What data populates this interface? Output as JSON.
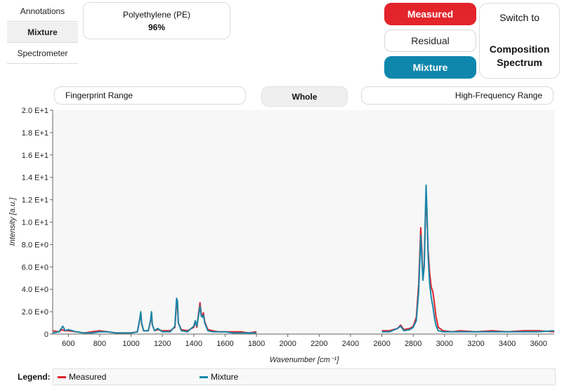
{
  "sidebar": {
    "items": [
      {
        "label": "Annotations",
        "active": false
      },
      {
        "label": "Mixture",
        "active": true
      },
      {
        "label": "Spectrometer",
        "active": false
      }
    ]
  },
  "component": {
    "name": "Polyethylene (PE)",
    "score": "96%"
  },
  "buttons": {
    "measured": "Measured",
    "residual": "Residual",
    "mixture": "Mixture",
    "switch_to": "Switch to",
    "switch_target": "Composition Spectrum"
  },
  "range_tabs": {
    "fingerprint": "Fingerprint Range",
    "whole": "Whole",
    "high": "High-Frequency Range"
  },
  "legend": {
    "title": "Legend:",
    "items": [
      {
        "label": "Measured",
        "color": "#d9232d"
      },
      {
        "label": "Mixture",
        "color": "#1a87a8"
      }
    ]
  },
  "colors": {
    "measured": "#e3242b",
    "mixture": "#0f87ad",
    "measured_line": "#d9232d",
    "mixture_line": "#1a87a8"
  },
  "chart_data": {
    "type": "line",
    "xlabel": "Wavenumber [cm⁻¹]",
    "ylabel": "Intensity [a.u.]",
    "xlim": [
      500,
      3700
    ],
    "ylim": [
      0,
      20
    ],
    "grid": false,
    "xticks": [
      "600",
      "800",
      "1000",
      "1200",
      "1400",
      "1600",
      "1800",
      "2000",
      "2200",
      "2400",
      "2600",
      "2800",
      "3000",
      "3200",
      "3400",
      "3600"
    ],
    "xtick_values": [
      600,
      800,
      1000,
      1200,
      1400,
      1600,
      1800,
      2000,
      2200,
      2400,
      2600,
      2800,
      3000,
      3200,
      3400,
      3600
    ],
    "yticks": [
      "0",
      "2.0 E+0",
      "4.0 E+0",
      "6.0 E+0",
      "8.0 E+0",
      "1.0 E+1",
      "1.2 E+1",
      "1.4 E+1",
      "1.6 E+1",
      "1.8 E+1",
      "2.0 E+1"
    ],
    "ytick_values": [
      0,
      2,
      4,
      6,
      8,
      10,
      12,
      14,
      16,
      18,
      20
    ],
    "series": [
      {
        "name": "Measured",
        "segments": [
          [
            [
              500,
              0.3
            ],
            [
              540,
              0.2
            ],
            [
              560,
              0.4
            ],
            [
              575,
              0.3
            ],
            [
              600,
              0.3
            ],
            [
              650,
              0.2
            ],
            [
              700,
              0.1
            ],
            [
              750,
              0.2
            ],
            [
              800,
              0.3
            ],
            [
              850,
              0.2
            ],
            [
              900,
              0.1
            ],
            [
              950,
              0.1
            ],
            [
              1000,
              0.1
            ],
            [
              1040,
              0.2
            ],
            [
              1055,
              1.2
            ],
            [
              1062,
              1.9
            ],
            [
              1068,
              0.9
            ],
            [
              1080,
              0.3
            ],
            [
              1110,
              0.3
            ],
            [
              1125,
              1.2
            ],
            [
              1130,
              1.9
            ],
            [
              1136,
              0.8
            ],
            [
              1150,
              0.3
            ],
            [
              1170,
              0.4
            ],
            [
              1200,
              0.3
            ],
            [
              1250,
              0.3
            ],
            [
              1280,
              0.6
            ],
            [
              1290,
              2.8
            ],
            [
              1296,
              2.7
            ],
            [
              1302,
              1.0
            ],
            [
              1320,
              0.4
            ],
            [
              1360,
              0.3
            ],
            [
              1400,
              0.6
            ],
            [
              1410,
              1.1
            ],
            [
              1420,
              0.6
            ],
            [
              1430,
              1.8
            ],
            [
              1440,
              2.8
            ],
            [
              1448,
              1.8
            ],
            [
              1455,
              1.6
            ],
            [
              1462,
              1.9
            ],
            [
              1470,
              1.1
            ],
            [
              1490,
              0.4
            ],
            [
              1520,
              0.3
            ],
            [
              1560,
              0.2
            ],
            [
              1600,
              0.2
            ],
            [
              1650,
              0.2
            ],
            [
              1700,
              0.2
            ],
            [
              1750,
              0.1
            ],
            [
              1800,
              0.2
            ]
          ],
          [
            [
              2600,
              0.3
            ],
            [
              2650,
              0.3
            ],
            [
              2700,
              0.5
            ],
            [
              2720,
              0.8
            ],
            [
              2740,
              0.4
            ],
            [
              2780,
              0.5
            ],
            [
              2800,
              0.7
            ],
            [
              2820,
              1.5
            ],
            [
              2835,
              4.5
            ],
            [
              2848,
              9.5
            ],
            [
              2855,
              7.5
            ],
            [
              2862,
              5.0
            ],
            [
              2870,
              6.0
            ],
            [
              2878,
              10.5
            ],
            [
              2882,
              12.4
            ],
            [
              2888,
              10.5
            ],
            [
              2895,
              7.5
            ],
            [
              2905,
              5.5
            ],
            [
              2915,
              4.2
            ],
            [
              2925,
              3.8
            ],
            [
              2935,
              2.8
            ],
            [
              2945,
              1.6
            ],
            [
              2960,
              0.6
            ],
            [
              2990,
              0.3
            ],
            [
              3050,
              0.2
            ],
            [
              3100,
              0.3
            ],
            [
              3200,
              0.2
            ],
            [
              3300,
              0.3
            ],
            [
              3400,
              0.2
            ],
            [
              3500,
              0.3
            ],
            [
              3600,
              0.3
            ],
            [
              3700,
              0.2
            ]
          ]
        ]
      },
      {
        "name": "Mixture",
        "segments": [
          [
            [
              500,
              0.1
            ],
            [
              540,
              0.2
            ],
            [
              565,
              0.7
            ],
            [
              580,
              0.3
            ],
            [
              600,
              0.4
            ],
            [
              650,
              0.2
            ],
            [
              700,
              0.1
            ],
            [
              750,
              0.1
            ],
            [
              800,
              0.2
            ],
            [
              850,
              0.2
            ],
            [
              900,
              0.1
            ],
            [
              950,
              0.1
            ],
            [
              1000,
              0.1
            ],
            [
              1040,
              0.2
            ],
            [
              1055,
              1.3
            ],
            [
              1062,
              2.0
            ],
            [
              1068,
              1.0
            ],
            [
              1080,
              0.3
            ],
            [
              1110,
              0.3
            ],
            [
              1125,
              1.3
            ],
            [
              1130,
              2.0
            ],
            [
              1136,
              0.8
            ],
            [
              1150,
              0.3
            ],
            [
              1170,
              0.5
            ],
            [
              1200,
              0.2
            ],
            [
              1250,
              0.2
            ],
            [
              1280,
              0.7
            ],
            [
              1290,
              3.2
            ],
            [
              1296,
              3.0
            ],
            [
              1302,
              1.0
            ],
            [
              1320,
              0.3
            ],
            [
              1360,
              0.2
            ],
            [
              1400,
              0.7
            ],
            [
              1410,
              1.2
            ],
            [
              1420,
              0.7
            ],
            [
              1430,
              1.6
            ],
            [
              1440,
              2.5
            ],
            [
              1448,
              1.6
            ],
            [
              1455,
              1.5
            ],
            [
              1462,
              1.7
            ],
            [
              1470,
              1.0
            ],
            [
              1490,
              0.3
            ],
            [
              1520,
              0.2
            ],
            [
              1560,
              0.2
            ],
            [
              1600,
              0.2
            ],
            [
              1650,
              0.1
            ],
            [
              1700,
              0.1
            ],
            [
              1750,
              0.1
            ],
            [
              1800,
              0.1
            ]
          ],
          [
            [
              2600,
              0.2
            ],
            [
              2650,
              0.2
            ],
            [
              2700,
              0.5
            ],
            [
              2720,
              0.7
            ],
            [
              2740,
              0.3
            ],
            [
              2780,
              0.4
            ],
            [
              2800,
              0.6
            ],
            [
              2820,
              1.2
            ],
            [
              2835,
              3.8
            ],
            [
              2848,
              8.8
            ],
            [
              2855,
              6.8
            ],
            [
              2862,
              4.8
            ],
            [
              2870,
              6.0
            ],
            [
              2878,
              11.0
            ],
            [
              2882,
              13.3
            ],
            [
              2888,
              11.0
            ],
            [
              2895,
              7.0
            ],
            [
              2905,
              4.5
            ],
            [
              2915,
              3.3
            ],
            [
              2925,
              2.5
            ],
            [
              2935,
              1.5
            ],
            [
              2945,
              0.8
            ],
            [
              2960,
              0.3
            ],
            [
              2990,
              0.2
            ],
            [
              3050,
              0.2
            ],
            [
              3100,
              0.2
            ],
            [
              3200,
              0.2
            ],
            [
              3300,
              0.2
            ],
            [
              3400,
              0.2
            ],
            [
              3500,
              0.2
            ],
            [
              3600,
              0.2
            ],
            [
              3700,
              0.3
            ]
          ]
        ]
      }
    ]
  }
}
